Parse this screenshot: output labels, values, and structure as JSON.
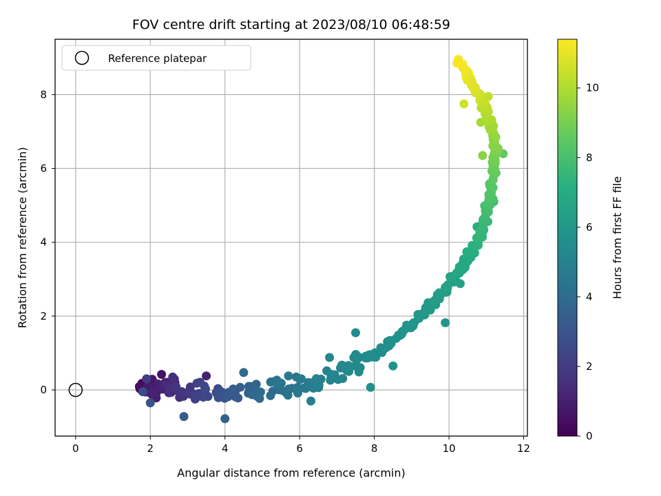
{
  "chart_data": {
    "type": "scatter",
    "title": "FOV centre drift starting at 2023/08/10 06:48:59",
    "xlabel": "Angular distance from reference (arcmin)",
    "ylabel": "Rotation from reference (arcmin)",
    "xlim": [
      -0.55,
      12.1
    ],
    "ylim": [
      -1.25,
      9.5
    ],
    "xticks": [
      0,
      2,
      4,
      6,
      8,
      10,
      12
    ],
    "yticks": [
      0,
      2,
      4,
      6,
      8
    ],
    "grid": true,
    "legend": {
      "placement": "upper-left",
      "entries": [
        "Reference platepar"
      ]
    },
    "reference_point": {
      "x": 0,
      "y": 0,
      "marker": "hollow-circle"
    },
    "colorbar": {
      "label": "Hours from first FF file",
      "colormap": "viridis",
      "range": [
        0,
        11.4
      ],
      "ticks": [
        0,
        2,
        4,
        6,
        8,
        10
      ]
    },
    "path_anchors": [
      [
        1.8,
        0.1,
        0.0
      ],
      [
        2.0,
        0.0,
        0.8
      ],
      [
        2.5,
        0.1,
        1.3
      ],
      [
        3.0,
        -0.1,
        1.8
      ],
      [
        3.6,
        0.0,
        2.4
      ],
      [
        4.2,
        -0.1,
        3.1
      ],
      [
        5.0,
        0.0,
        3.9
      ],
      [
        5.8,
        0.1,
        4.4
      ],
      [
        6.5,
        0.2,
        4.9
      ],
      [
        7.3,
        0.6,
        5.3
      ],
      [
        8.0,
        0.9,
        5.5
      ],
      [
        8.6,
        1.4,
        5.7
      ],
      [
        9.2,
        1.95,
        5.95
      ],
      [
        9.7,
        2.5,
        6.25
      ],
      [
        10.1,
        3.0,
        6.55
      ],
      [
        10.45,
        3.5,
        6.85
      ],
      [
        10.75,
        4.0,
        7.25
      ],
      [
        10.95,
        4.6,
        7.65
      ],
      [
        11.1,
        5.2,
        8.1
      ],
      [
        11.2,
        5.9,
        8.6
      ],
      [
        11.25,
        6.5,
        9.1
      ],
      [
        11.15,
        7.1,
        9.7
      ],
      [
        10.95,
        7.7,
        10.3
      ],
      [
        10.6,
        8.3,
        10.9
      ],
      [
        10.3,
        8.9,
        11.3
      ]
    ],
    "point_count": 360,
    "sample_points": [
      [
        1.8,
        0.12,
        0.1
      ],
      [
        2.3,
        0.42,
        0.6
      ],
      [
        2.4,
        0.2,
        0.9
      ],
      [
        3.5,
        0.38,
        1.1
      ],
      [
        2.6,
        0.35,
        1.5
      ],
      [
        1.9,
        0.3,
        2.0
      ],
      [
        1.8,
        -0.05,
        2.6
      ],
      [
        2.0,
        -0.35,
        2.8
      ],
      [
        2.9,
        -0.72,
        3.3
      ],
      [
        4.0,
        -0.78,
        3.5
      ],
      [
        4.5,
        0.47,
        3.9
      ],
      [
        5.4,
        0.17,
        4.4
      ],
      [
        5.7,
        0.38,
        4.6
      ],
      [
        6.3,
        -0.3,
        4.9
      ],
      [
        6.8,
        0.88,
        5.2
      ],
      [
        7.5,
        1.55,
        5.5
      ],
      [
        7.9,
        0.07,
        5.6
      ],
      [
        8.5,
        0.65,
        5.7
      ],
      [
        9.9,
        1.82,
        6.0
      ],
      [
        10.3,
        2.88,
        6.5
      ],
      [
        10.75,
        4.42,
        7.1
      ],
      [
        11.2,
        5.1,
        7.7
      ],
      [
        11.45,
        6.4,
        8.6
      ],
      [
        10.9,
        6.35,
        9.3
      ],
      [
        10.85,
        7.25,
        9.8
      ],
      [
        11.05,
        7.95,
        10.3
      ],
      [
        10.4,
        7.75,
        10.6
      ],
      [
        10.25,
        8.95,
        11.2
      ]
    ]
  }
}
